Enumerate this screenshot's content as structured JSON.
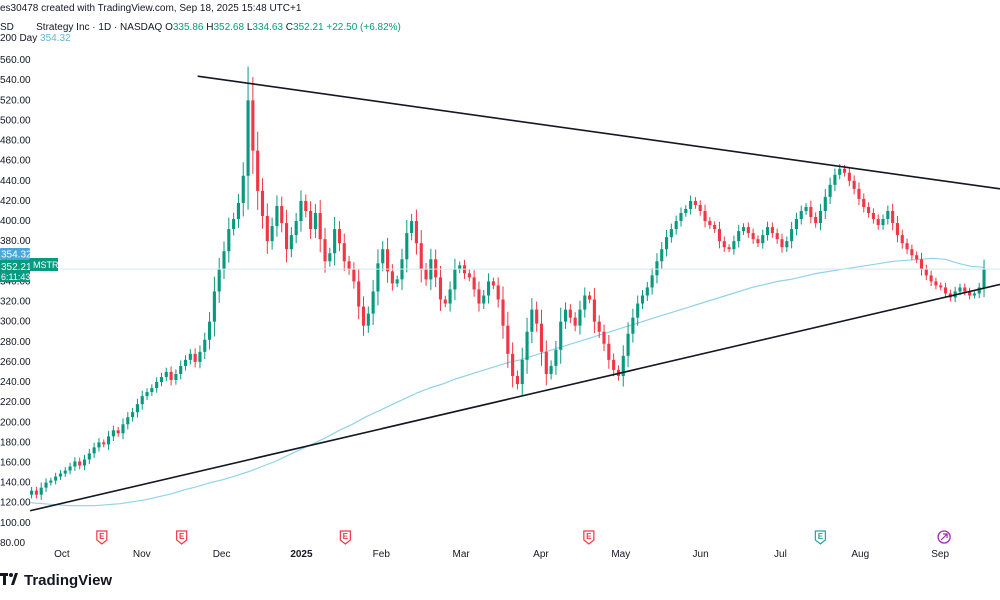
{
  "header": {
    "publisher": "es30478 created with TradingView.com, Sep 18, 2025 15:48 UTC+1",
    "currency_prefix": "SD",
    "symbol_title": "Strategy Inc · 1D · NASDAQ",
    "o_label": "O",
    "o_value": "335.86",
    "h_label": "H",
    "h_value": "352.68",
    "l_label": "L",
    "l_value": "334.63",
    "c_label": "C",
    "c_value": "352.21",
    "change": "+22.50 (+6.82%)",
    "ma_label": "200 Day",
    "ma_value": "354.32"
  },
  "badges": {
    "ma_price": "354.32",
    "last_price": "352.21",
    "countdown": "6:11:43",
    "symbol": "MSTR"
  },
  "brand": {
    "name": "TradingView"
  },
  "colors": {
    "up": "#089981",
    "down": "#f23645",
    "ma": "#8fd3ea",
    "trendline": "#131722",
    "badge_ma": "#47a7d8",
    "badge_price": "#089981"
  },
  "event_icons": [
    {
      "month_index": 1.0,
      "letter": "E"
    },
    {
      "month_index": 2.0,
      "letter": "E"
    },
    {
      "month_index": 4.05,
      "letter": "E"
    },
    {
      "month_index": 7.1,
      "letter": "E"
    },
    {
      "month_index": 10.0,
      "letter": "E"
    },
    {
      "month_index": 11.55,
      "letter": "dividend-icon"
    }
  ],
  "chart_data": {
    "type": "candlestick",
    "symbol": "MSTR",
    "y_ticks": [
      80,
      100,
      120,
      140,
      160,
      180,
      200,
      220,
      240,
      260,
      280,
      300,
      320,
      340,
      360,
      380,
      400,
      420,
      440,
      460,
      480,
      500,
      520,
      540,
      560
    ],
    "ylim": [
      75,
      575
    ],
    "x_ticks": [
      {
        "label": "Oct",
        "pos": 0.5
      },
      {
        "label": "Nov",
        "pos": 1.5
      },
      {
        "label": "Dec",
        "pos": 2.5
      },
      {
        "label": "2025",
        "pos": 3.5,
        "bold": true
      },
      {
        "label": "Feb",
        "pos": 4.5
      },
      {
        "label": "Mar",
        "pos": 5.5
      },
      {
        "label": "Apr",
        "pos": 6.5
      },
      {
        "label": "May",
        "pos": 7.5
      },
      {
        "label": "Jun",
        "pos": 8.5
      },
      {
        "label": "Jul",
        "pos": 9.5
      },
      {
        "label": "Aug",
        "pos": 10.5
      },
      {
        "label": "Sep",
        "pos": 11.5
      }
    ],
    "xlim": [
      0.1,
      12.25
    ],
    "close": [
      132,
      128,
      135,
      140,
      142,
      146,
      149,
      152,
      156,
      161,
      157,
      163,
      169,
      175,
      180,
      178,
      186,
      192,
      189,
      198,
      205,
      210,
      218,
      226,
      230,
      234,
      240,
      245,
      250,
      242,
      248,
      256,
      262,
      268,
      260,
      270,
      282,
      300,
      330,
      352,
      370,
      392,
      402,
      418,
      445,
      520,
      470,
      430,
      405,
      380,
      395,
      415,
      398,
      372,
      386,
      400,
      420,
      410,
      392,
      408,
      382,
      360,
      368,
      392,
      378,
      360,
      352,
      340,
      315,
      296,
      308,
      330,
      358,
      372,
      350,
      338,
      342,
      362,
      388,
      400,
      378,
      352,
      342,
      362,
      344,
      322,
      318,
      332,
      352,
      356,
      348,
      344,
      332,
      318,
      326,
      340,
      336,
      322,
      296,
      268,
      246,
      238,
      262,
      290,
      312,
      298,
      270,
      248,
      256,
      272,
      300,
      312,
      304,
      296,
      312,
      326,
      322,
      300,
      290,
      278,
      262,
      252,
      246,
      266,
      288,
      304,
      318,
      326,
      334,
      346,
      360,
      372,
      384,
      392,
      400,
      408,
      412,
      420,
      416,
      410,
      400,
      396,
      392,
      380,
      374,
      372,
      380,
      390,
      394,
      388,
      382,
      378,
      386,
      394,
      388,
      382,
      374,
      380,
      392,
      402,
      410,
      414,
      404,
      398,
      410,
      424,
      436,
      446,
      452,
      448,
      440,
      432,
      422,
      414,
      408,
      402,
      396,
      402,
      410,
      398,
      386,
      378,
      372,
      366,
      362,
      352,
      346,
      340,
      336,
      334,
      328,
      324,
      330,
      334,
      330,
      326,
      328,
      334,
      352
    ],
    "ma200": [
      120,
      119,
      118,
      117,
      117,
      117,
      118,
      119,
      121,
      123,
      126,
      129,
      133,
      136,
      140,
      143,
      147,
      151,
      156,
      161,
      167,
      173,
      179,
      185,
      192,
      198,
      205,
      211,
      217,
      223,
      229,
      234,
      238,
      243,
      247,
      251,
      255,
      259,
      262,
      266,
      270,
      274,
      278,
      282,
      286,
      290,
      294,
      298,
      302,
      306,
      310,
      314,
      318,
      322,
      326,
      330,
      334,
      337,
      340,
      342,
      345,
      348,
      350,
      352,
      354,
      356,
      358,
      360,
      361,
      362,
      363,
      362,
      358,
      355,
      354
    ],
    "trendline_upper": {
      "from": {
        "pos": 2.2,
        "value": 544
      },
      "to": {
        "pos": 12.25,
        "value": 432
      }
    },
    "trendline_lower": {
      "from": {
        "pos": 0.1,
        "value": 112
      },
      "to": {
        "pos": 12.25,
        "value": 337
      }
    }
  }
}
